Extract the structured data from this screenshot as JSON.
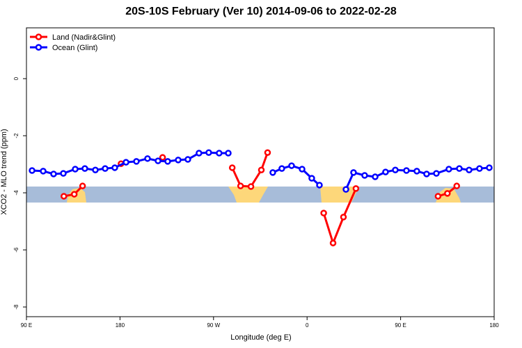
{
  "chart_data": {
    "type": "line",
    "title": "20S-10S February (Ver 10)   2014-09-06 to 2022-02-28",
    "x_label": "Longitude (deg E)",
    "y_label": "XCO2 - MLO trend (ppm)",
    "xlim": [
      90,
      540
    ],
    "xticks": [
      {
        "value": 90,
        "label": "90 E"
      },
      {
        "value": 180,
        "label": "180"
      },
      {
        "value": 270,
        "label": "90 W"
      },
      {
        "value": 360,
        "label": "0"
      },
      {
        "value": 450,
        "label": "90 E"
      },
      {
        "value": 540,
        "label": "180"
      }
    ],
    "ylim": [
      -8.34,
      1.78
    ],
    "yticks": [
      0,
      -2,
      -4,
      -6,
      -8
    ],
    "legend": "top-left",
    "series": [
      {
        "name": "Land (Nadir&Glint)",
        "color": "#ff0000",
        "x": [
          126,
          136,
          144,
          150,
          181,
          200,
          221,
          250,
          288,
          296,
          306,
          316,
          322,
          340,
          376,
          385,
          395,
          407,
          420,
          486,
          495,
          504
        ],
        "values": [
          -4.12,
          -4.05,
          -3.76,
          null,
          -2.98,
          null,
          -2.76,
          null,
          -3.12,
          -3.76,
          -3.78,
          -3.2,
          -2.59,
          null,
          -4.71,
          -5.76,
          -4.85,
          -3.85,
          null,
          -4.12,
          -4.02,
          -3.76
        ]
      },
      {
        "name": "Ocean (Glint)",
        "color": "#0000ff",
        "x": [
          95.4,
          106.1,
          116.1,
          125.5,
          136.9,
          146.2,
          156.3,
          165.7,
          175,
          185.8,
          195.8,
          206.5,
          216.6,
          225.9,
          236,
          245.3,
          256,
          265.4,
          275.4,
          284.2,
          300,
          327,
          335.7,
          345.1,
          355.2,
          364.5,
          371.9,
          385,
          397.4,
          404.7,
          415.4,
          425.5,
          435.5,
          444.9,
          455.6,
          465.6,
          475,
          484.4,
          496.4,
          506.5,
          515.9,
          525.9,
          535.3
        ],
        "values": [
          -3.22,
          -3.24,
          -3.34,
          -3.32,
          -3.17,
          -3.15,
          -3.2,
          -3.15,
          -3.12,
          -2.93,
          -2.9,
          -2.8,
          -2.88,
          -2.9,
          -2.85,
          -2.83,
          -2.61,
          -2.59,
          -2.61,
          -2.61,
          null,
          -3.29,
          -3.15,
          -3.05,
          -3.17,
          -3.49,
          -3.73,
          null,
          -3.88,
          -3.29,
          -3.39,
          -3.44,
          -3.27,
          -3.2,
          -3.22,
          -3.24,
          -3.34,
          -3.32,
          -3.17,
          -3.15,
          -3.2,
          -3.15,
          -3.12
        ]
      }
    ]
  }
}
